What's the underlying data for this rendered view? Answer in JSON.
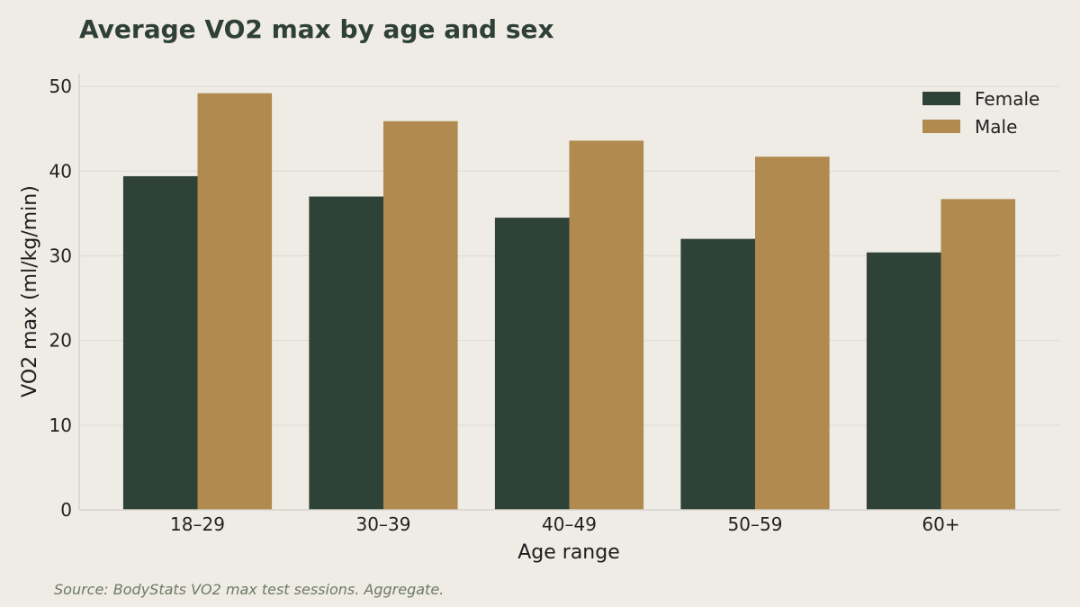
{
  "chart_data": {
    "type": "bar",
    "title": "Average VO2 max by age and sex",
    "xlabel": "Age range",
    "ylabel": "VO2 max (ml/kg/min)",
    "categories": [
      "18–29",
      "30–39",
      "40–49",
      "50–59",
      "60+"
    ],
    "series": [
      {
        "name": "Female",
        "values": [
          39.4,
          37.0,
          34.5,
          32.0,
          30.4
        ],
        "color": "#2e4237"
      },
      {
        "name": "Male",
        "values": [
          49.2,
          45.9,
          43.6,
          41.7,
          36.7
        ],
        "color": "#b08a4f"
      }
    ],
    "ylim": [
      0,
      51.5
    ],
    "yticks": [
      0,
      10,
      20,
      30,
      40,
      50
    ],
    "grid": true,
    "legend_position": "top-right"
  },
  "source_note": "Source: BodyStats VO2 max test sessions. Aggregate."
}
